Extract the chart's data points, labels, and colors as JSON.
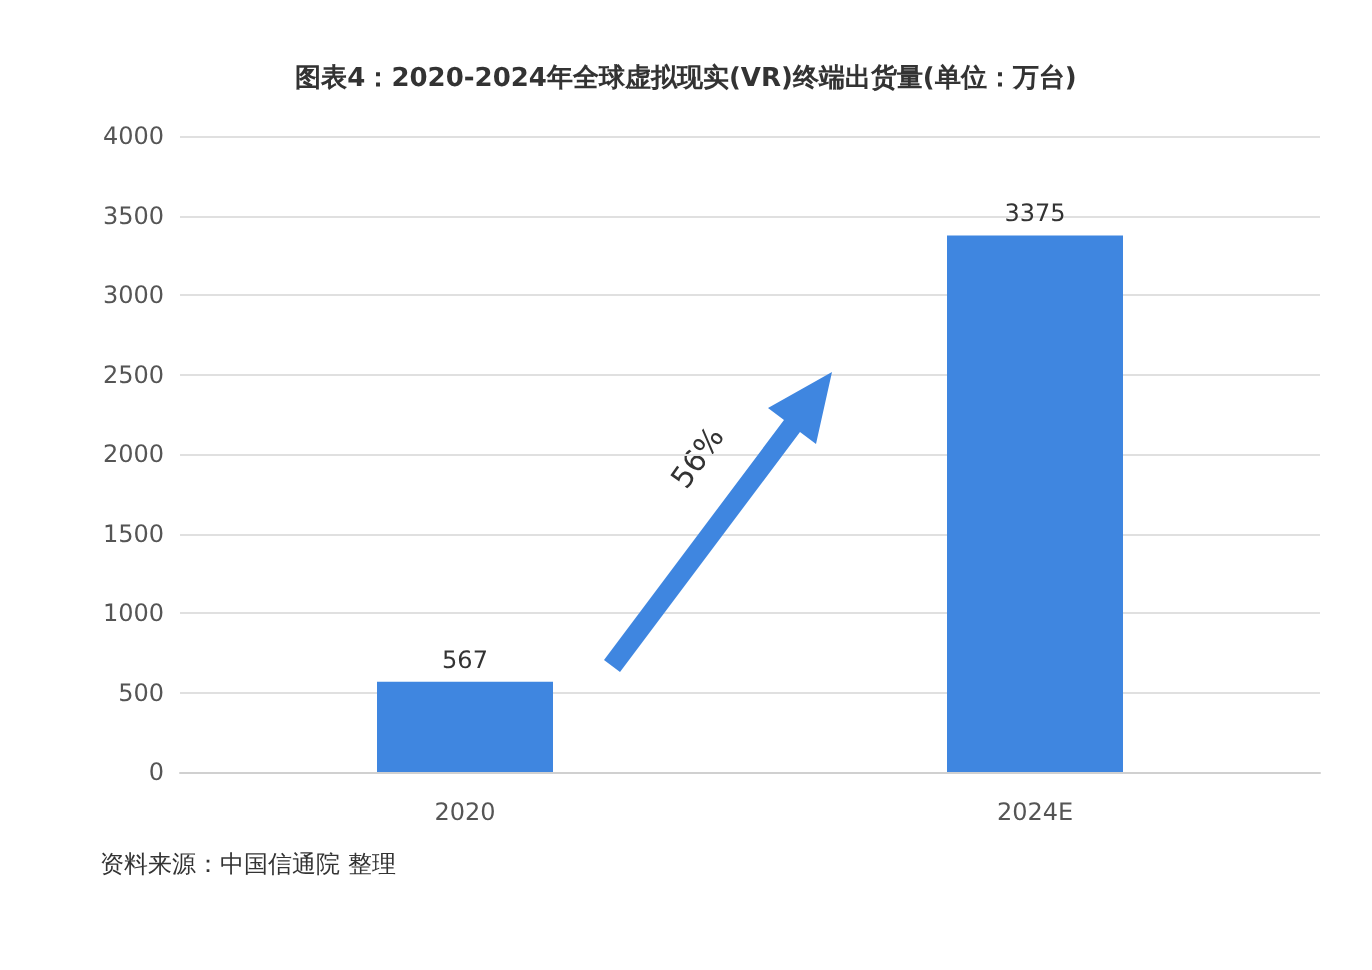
{
  "chart_data": {
    "type": "bar",
    "title": "图表4：2020-2024年全球虚拟现实(VR)终端出货量(单位：万台)",
    "categories": [
      "2020",
      "2024E"
    ],
    "values": [
      567,
      3375
    ],
    "color": "#3f86e0",
    "data_labels": true,
    "ylim": [
      0,
      4000
    ],
    "yticks": [
      0,
      500,
      1000,
      1500,
      2000,
      2500,
      3000,
      3500,
      4000
    ],
    "grid": "y",
    "annotations": [
      "56%",
      "资料来源：中国信通院 整理"
    ]
  }
}
